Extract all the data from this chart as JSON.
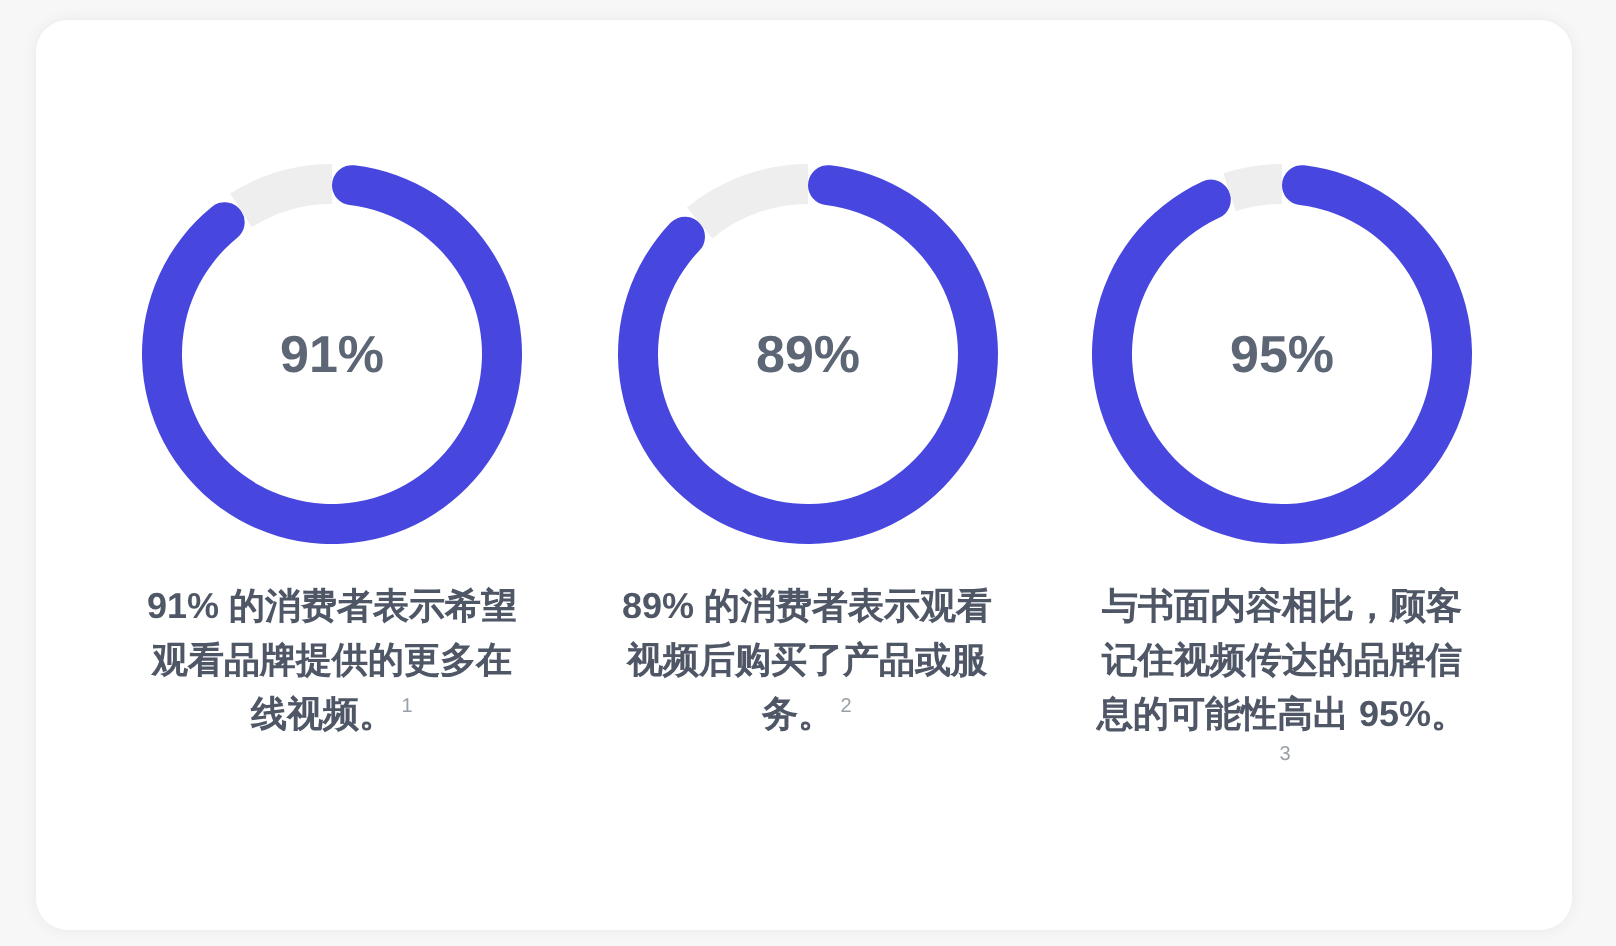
{
  "chart_data": [
    {
      "type": "donut",
      "categories": [
        null,
        null
      ],
      "values": [
        91,
        9
      ],
      "colors": [
        "#4747e0",
        "#eeeeee"
      ],
      "value_labels": [
        "91%",
        null
      ],
      "annotations": [
        "91% 的消费者表示希望观看品牌提供的更多在线视频。$^{1}$"
      ]
    },
    {
      "type": "donut",
      "categories": [
        null,
        null
      ],
      "values": [
        89,
        11
      ],
      "colors": [
        "#4747e0",
        "#eeeeee"
      ],
      "value_labels": [
        "89%",
        null
      ],
      "annotations": [
        "89% 的消费者表示观看视频后购买了产品或服务。$^{2}$"
      ]
    },
    {
      "type": "donut",
      "categories": [
        null,
        null
      ],
      "values": [
        95,
        5
      ],
      "colors": [
        "#4747e0",
        "#eeeeee"
      ],
      "value_labels": [
        "95%",
        null
      ],
      "annotations": [
        "与书面内容相比，顾客记住视频传达的品牌信息的可能性高出 95%。$^{3}$"
      ]
    }
  ]
}
